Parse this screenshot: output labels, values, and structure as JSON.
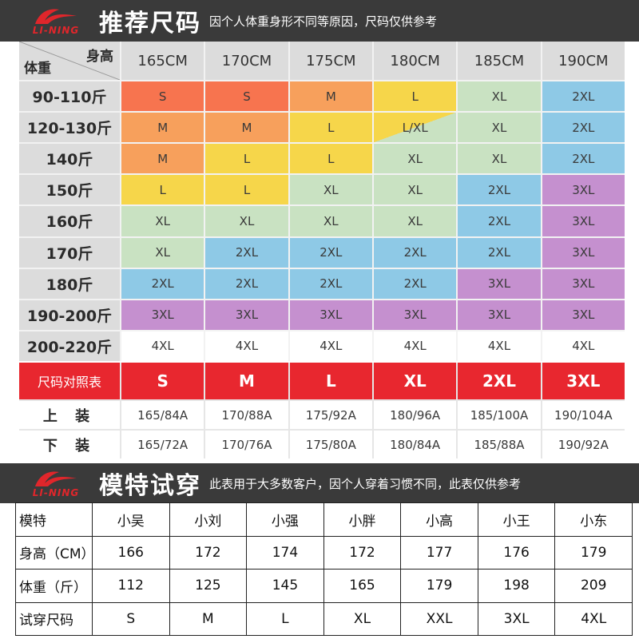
{
  "brand": "LI-NING",
  "colors": {
    "S": "#f7744f",
    "M": "#f7a05c",
    "L": "#f6d64a",
    "XL": "#c9e2c2",
    "2XL": "#8ec9e6",
    "3XL": "#c590cf",
    "4XL": "#ffffff",
    "header": "#dcdcdc",
    "red": "#e8272f",
    "banner": "#3a3a3a"
  },
  "banner1": {
    "title": "推荐尺码",
    "subtitle": "因个人体重身形不同等原因，尺码仅供参考"
  },
  "size_table": {
    "corner_top": "身高",
    "corner_bottom": "体重",
    "heights": [
      "165CM",
      "170CM",
      "175CM",
      "180CM",
      "185CM",
      "190CM"
    ],
    "rows": [
      {
        "weight": "90-110斤",
        "sizes": [
          "S",
          "S",
          "M",
          "L",
          "XL",
          "2XL"
        ]
      },
      {
        "weight": "120-130斤",
        "sizes": [
          "M",
          "M",
          "L",
          "L/XL",
          "XL",
          "2XL"
        ]
      },
      {
        "weight": "140斤",
        "sizes": [
          "M",
          "L",
          "L",
          "XL",
          "XL",
          "2XL"
        ]
      },
      {
        "weight": "150斤",
        "sizes": [
          "L",
          "L",
          "XL",
          "XL",
          "2XL",
          "3XL"
        ]
      },
      {
        "weight": "160斤",
        "sizes": [
          "XL",
          "XL",
          "XL",
          "XL",
          "2XL",
          "3XL"
        ]
      },
      {
        "weight": "170斤",
        "sizes": [
          "XL",
          "2XL",
          "2XL",
          "2XL",
          "2XL",
          "3XL"
        ]
      },
      {
        "weight": "180斤",
        "sizes": [
          "2XL",
          "2XL",
          "2XL",
          "2XL",
          "3XL",
          "3XL"
        ]
      },
      {
        "weight": "190-200斤",
        "sizes": [
          "3XL",
          "3XL",
          "3XL",
          "3XL",
          "3XL",
          "3XL"
        ]
      },
      {
        "weight": "200-220斤",
        "sizes": [
          "4XL",
          "4XL",
          "4XL",
          "4XL",
          "4XL",
          "4XL"
        ]
      }
    ]
  },
  "compare_table": {
    "title": "尺码对照表",
    "sizes": [
      "S",
      "M",
      "L",
      "XL",
      "2XL",
      "3XL"
    ],
    "top_label": "上 装",
    "top": [
      "165/84A",
      "170/88A",
      "175/92A",
      "180/96A",
      "185/100A",
      "190/104A"
    ],
    "bottom_label": "下 装",
    "bottom": [
      "165/72A",
      "170/76A",
      "175/80A",
      "180/84A",
      "185/88A",
      "190/92A"
    ]
  },
  "banner2": {
    "title": "模特试穿",
    "subtitle": "此表用于大多数客户，因个人穿着习惯不同，此表仅供参考"
  },
  "model_table": {
    "headers": [
      "模特",
      "小吴",
      "小刘",
      "小强",
      "小胖",
      "小高",
      "小王",
      "小东"
    ],
    "rows": [
      [
        "身高（CM）",
        "166",
        "172",
        "174",
        "172",
        "177",
        "176",
        "179"
      ],
      [
        "体重（斤）",
        "112",
        "125",
        "145",
        "165",
        "179",
        "198",
        "209"
      ],
      [
        "试穿尺码",
        "S",
        "M",
        "L",
        "XL",
        "XXL",
        "3XL",
        "4XL"
      ]
    ]
  }
}
